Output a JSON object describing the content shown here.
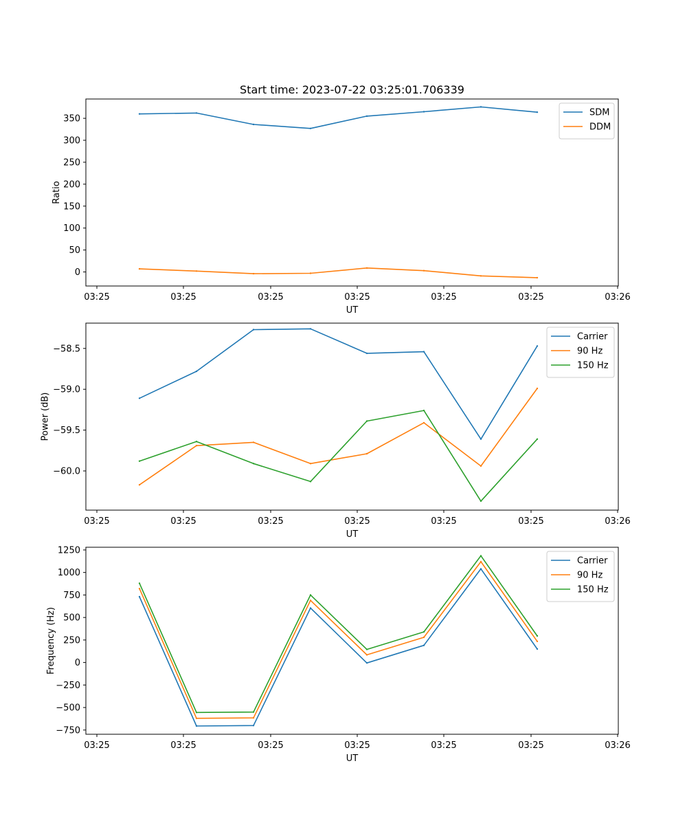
{
  "chart_data": [
    {
      "type": "line",
      "title": "Start time: 2023-07-22 03:25:01.706339",
      "xlabel": "UT",
      "ylabel": "Ratio",
      "x_tick_labels": [
        "03:25",
        "03:25",
        "03:25",
        "03:25",
        "03:25",
        "03:25",
        "03:26"
      ],
      "y_ticks": [
        0,
        50,
        100,
        150,
        200,
        250,
        300,
        350
      ],
      "ylim": [
        -32,
        394
      ],
      "legend": "top-right",
      "series": [
        {
          "name": "SDM",
          "color": "#1f77b4",
          "values": [
            360,
            362,
            336,
            327,
            355,
            365,
            376,
            364
          ]
        },
        {
          "name": "DDM",
          "color": "#ff7f0e",
          "values": [
            7,
            2,
            -4,
            -3,
            9,
            3,
            -9,
            -13
          ]
        }
      ]
    },
    {
      "type": "line",
      "title": "",
      "xlabel": "UT",
      "ylabel": "Power (dB)",
      "x_tick_labels": [
        "03:25",
        "03:25",
        "03:25",
        "03:25",
        "03:25",
        "03:25",
        "03:26"
      ],
      "y_ticks": [
        -58.5,
        -59.0,
        -59.5,
        -60.0
      ],
      "y_tick_labels": [
        "−58.5",
        "−59.0",
        "−59.5",
        "−60.0"
      ],
      "ylim": [
        -60.48,
        -58.19
      ],
      "legend": "top-right",
      "series": [
        {
          "name": "Carrier",
          "color": "#1f77b4",
          "values": [
            -59.11,
            -58.78,
            -58.27,
            -58.26,
            -58.56,
            -58.54,
            -59.61,
            -58.47
          ]
        },
        {
          "name": "90 Hz",
          "color": "#ff7f0e",
          "values": [
            -60.17,
            -59.69,
            -59.65,
            -59.91,
            -59.79,
            -59.41,
            -59.94,
            -58.99
          ]
        },
        {
          "name": "150 Hz",
          "color": "#2ca02c",
          "values": [
            -59.88,
            -59.64,
            -59.91,
            -60.13,
            -59.39,
            -59.26,
            -60.37,
            -59.61
          ]
        }
      ]
    },
    {
      "type": "line",
      "title": "",
      "xlabel": "UT",
      "ylabel": "Frequency (Hz)",
      "x_tick_labels": [
        "03:25",
        "03:25",
        "03:25",
        "03:25",
        "03:25",
        "03:25",
        "03:26"
      ],
      "y_ticks": [
        -750,
        -500,
        -250,
        0,
        250,
        500,
        750,
        1000,
        1250
      ],
      "y_tick_labels": [
        "−750",
        "−500",
        "−250",
        "0",
        "250",
        "500",
        "750",
        "1000",
        "1250"
      ],
      "ylim": [
        -797,
        1280
      ],
      "legend": "top-right",
      "series": [
        {
          "name": "Carrier",
          "color": "#1f77b4",
          "values": [
            730,
            -705,
            -700,
            605,
            -5,
            190,
            1040,
            150
          ]
        },
        {
          "name": "90 Hz",
          "color": "#ff7f0e",
          "values": [
            820,
            -620,
            -615,
            690,
            85,
            280,
            1120,
            235
          ]
        },
        {
          "name": "150 Hz",
          "color": "#2ca02c",
          "values": [
            880,
            -555,
            -550,
            750,
            145,
            340,
            1185,
            295
          ]
        }
      ]
    }
  ]
}
